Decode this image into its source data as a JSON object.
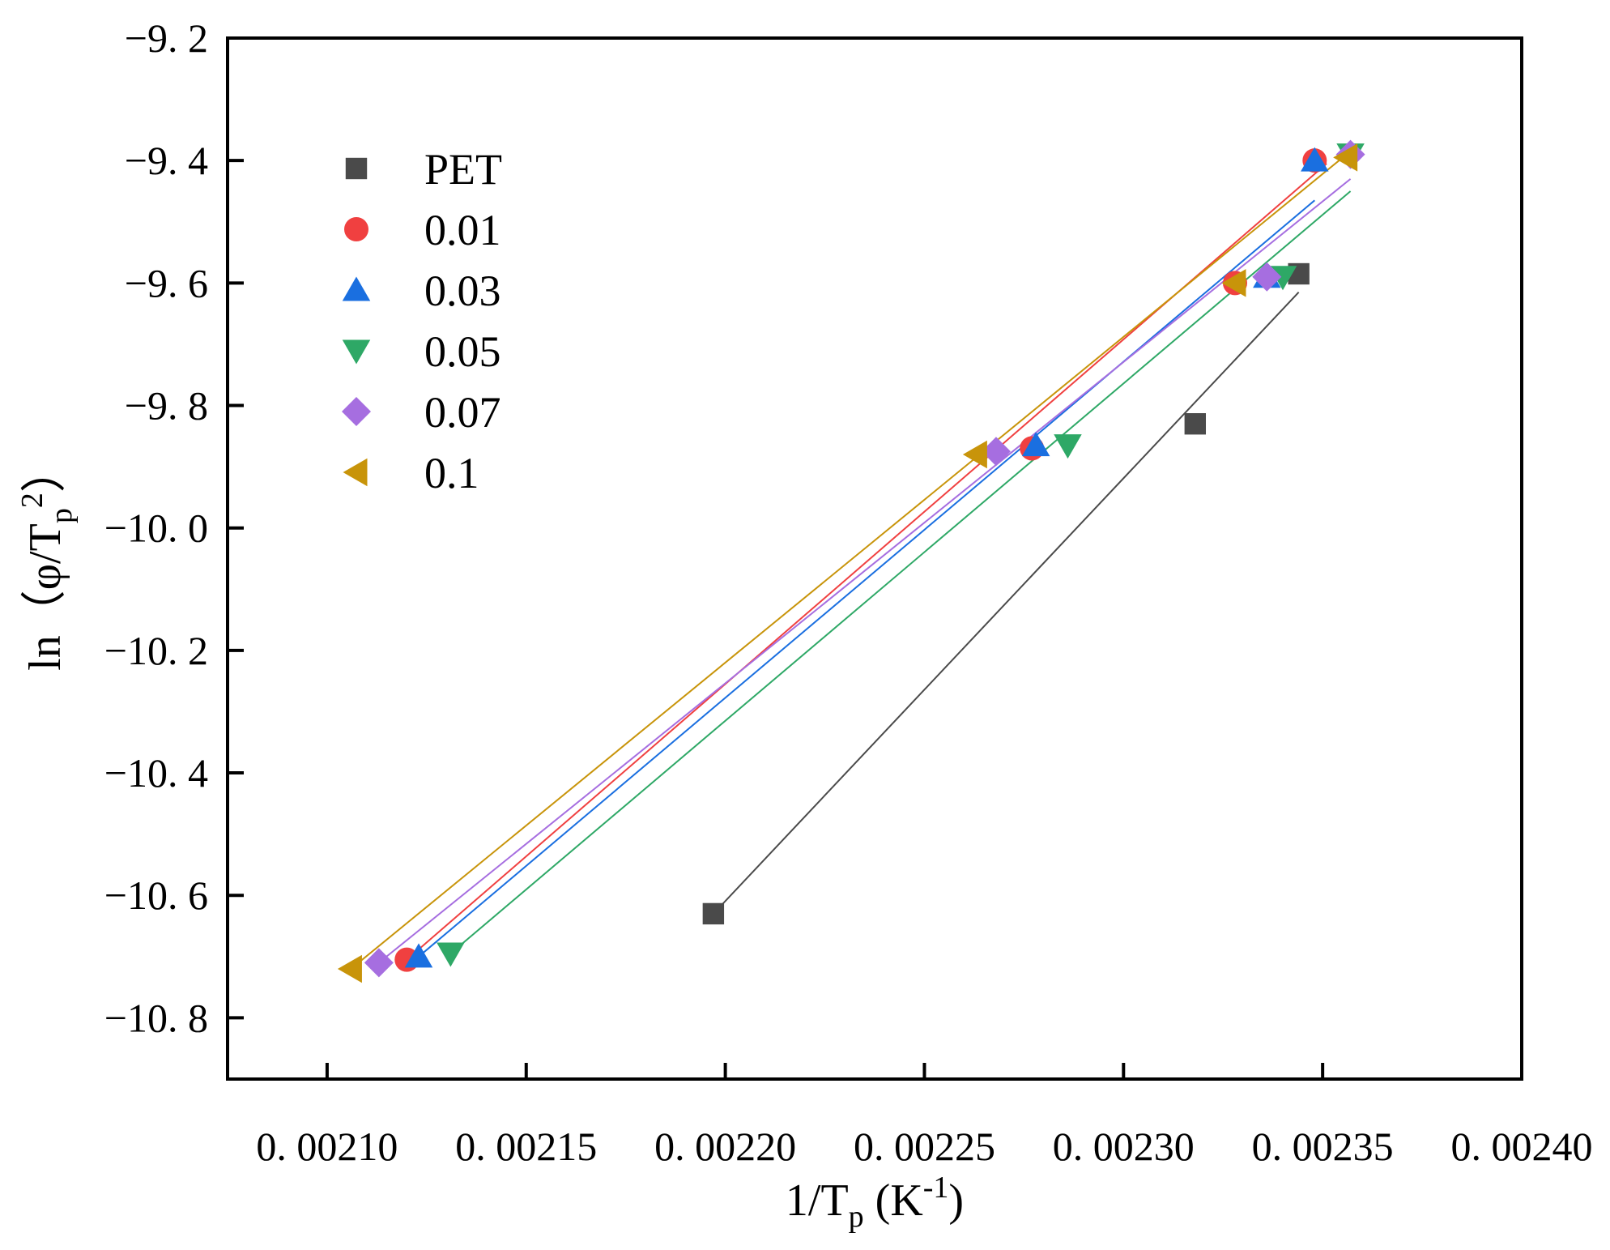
{
  "chart_data": {
    "type": "scatter",
    "title": "",
    "xlabel": {
      "main": "1/T",
      "sub": "p",
      "rest": " (K",
      "sup": "-1",
      "end": ")"
    },
    "ylabel": {
      "main": "ln（φ/T",
      "sub": "p",
      "sup": "2",
      "end": "）"
    },
    "xlim": [
      0.002075,
      0.0024
    ],
    "ylim": [
      -10.9,
      -9.2
    ],
    "xticks": [
      0.0021,
      0.00215,
      0.0022,
      0.00225,
      0.0023,
      0.00235,
      0.0024
    ],
    "xtick_labels": [
      "0. 00210",
      "0. 00215",
      "0. 00220",
      "0. 00225",
      "0. 00230",
      "0. 00235",
      "0. 00240"
    ],
    "yticks": [
      -9.2,
      -9.4,
      -9.6,
      -9.8,
      -10.0,
      -10.2,
      -10.4,
      -10.6,
      -10.8
    ],
    "ytick_labels": [
      "−9. 2",
      "−9. 4",
      "−9. 6",
      "−9. 8",
      "−10. 0",
      "−10. 2",
      "−10. 4",
      "−10. 6",
      "−10. 8"
    ],
    "legend_position": "top-left",
    "series": [
      {
        "name": "PET",
        "marker": "square",
        "color": "#4a4a4a",
        "x": [
          0.002197,
          0.002318,
          0.002344
        ],
        "y": [
          -10.63,
          -9.83,
          -9.585
        ],
        "fit": [
          [
            0.002197,
            -10.63
          ],
          [
            0.002344,
            -9.615
          ]
        ]
      },
      {
        "name": "0.01",
        "marker": "circle",
        "color": "#f04040",
        "x": [
          0.00212,
          0.002277,
          0.002328,
          0.002348
        ],
        "y": [
          -10.705,
          -9.87,
          -9.6,
          -9.4
        ],
        "fit": [
          [
            0.00212,
            -10.705
          ],
          [
            0.002351,
            -9.405
          ]
        ]
      },
      {
        "name": "0.03",
        "marker": "triangle-up",
        "color": "#1a6fe0",
        "x": [
          0.002123,
          0.002278,
          0.002336,
          0.002348
        ],
        "y": [
          -10.7,
          -9.865,
          -9.59,
          -9.4
        ],
        "fit": [
          [
            0.002123,
            -10.7
          ],
          [
            0.002348,
            -9.465
          ]
        ]
      },
      {
        "name": "0.05",
        "marker": "triangle-down",
        "color": "#2ea866",
        "x": [
          0.002131,
          0.002286,
          0.00234,
          0.002357
        ],
        "y": [
          -10.695,
          -9.865,
          -9.59,
          -9.39
        ],
        "fit": [
          [
            0.002131,
            -10.695
          ],
          [
            0.002357,
            -9.45
          ]
        ]
      },
      {
        "name": "0.07",
        "marker": "diamond",
        "color": "#a66ee0",
        "x": [
          0.002113,
          0.002268,
          0.002336,
          0.002357
        ],
        "y": [
          -10.71,
          -9.875,
          -9.59,
          -9.39
        ],
        "fit": [
          [
            0.002113,
            -10.71
          ],
          [
            0.002357,
            -9.43
          ]
        ]
      },
      {
        "name": "0.1",
        "marker": "triangle-left",
        "color": "#c8940a",
        "x": [
          0.002106,
          0.002263,
          0.002328,
          0.002356
        ],
        "y": [
          -10.72,
          -9.88,
          -9.6,
          -9.395
        ],
        "fit": [
          [
            0.002106,
            -10.72
          ],
          [
            0.002356,
            -9.39
          ]
        ]
      }
    ]
  }
}
